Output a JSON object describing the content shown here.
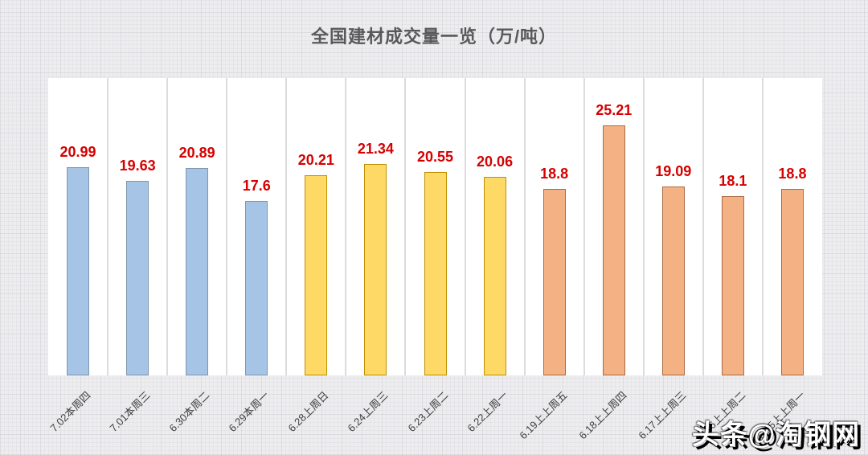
{
  "chart_data": {
    "type": "bar",
    "title": "全国建材成交量一览（万/吨）",
    "categories": [
      "7.02本周四",
      "7.01本周三",
      "6.30本周二",
      "6.29本周一",
      "6.28上周日",
      "6.24上周三",
      "6.23上周二",
      "6.22上周一",
      "6.19上上周五",
      "6.18上上周四",
      "6.17上上周三",
      "6.16上上周二",
      "6.15上上周一"
    ],
    "values": [
      20.99,
      19.63,
      20.89,
      17.6,
      20.21,
      21.34,
      20.55,
      20.06,
      18.8,
      25.21,
      19.09,
      18.1,
      18.8
    ],
    "value_labels": [
      "20.99",
      "19.63",
      "20.89",
      "17.6",
      "20.21",
      "21.34",
      "20.55",
      "20.06",
      "18.8",
      "25.21",
      "19.09",
      "18.1",
      "18.8"
    ],
    "groups": [
      "this_week",
      "this_week",
      "this_week",
      "this_week",
      "last_week",
      "last_week",
      "last_week",
      "last_week",
      "two_weeks_ago",
      "two_weeks_ago",
      "two_weeks_ago",
      "two_weeks_ago",
      "two_weeks_ago"
    ],
    "group_colors": {
      "this_week": {
        "fill": "#A6C4E6",
        "border": "#7F96AE"
      },
      "last_week": {
        "fill": "#FFD966",
        "border": "#BF9000"
      },
      "two_weeks_ago": {
        "fill": "#F4B183",
        "border": "#AA6A44"
      }
    },
    "value_label_color": "#D60000",
    "title_color": "#595959",
    "axis_label_color": "#404040",
    "xlabel": "",
    "ylabel": "",
    "ylim": [
      0,
      30
    ],
    "grid": false,
    "legend": "none"
  },
  "watermark": {
    "text": "头条@淘钢网"
  }
}
